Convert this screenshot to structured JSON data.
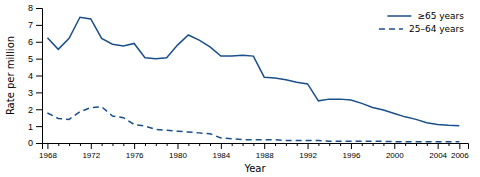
{
  "chart_data": {
    "type": "line",
    "xlabel": "Year",
    "ylabel": "Rate per million",
    "x": [
      1968,
      1969,
      1970,
      1971,
      1972,
      1973,
      1974,
      1975,
      1976,
      1977,
      1978,
      1979,
      1980,
      1981,
      1982,
      1983,
      1984,
      1985,
      1986,
      1987,
      1988,
      1989,
      1990,
      1991,
      1992,
      1993,
      1994,
      1995,
      1996,
      1997,
      1998,
      1999,
      2000,
      2001,
      2002,
      2003,
      2004,
      2005,
      2006
    ],
    "series": [
      {
        "name": "≥65 years",
        "color": "#1a4f8a",
        "line_style": "solid",
        "values": [
          6.24,
          5.55,
          6.2,
          7.45,
          7.35,
          6.2,
          5.85,
          5.75,
          5.9,
          5.05,
          5.0,
          5.05,
          5.8,
          6.4,
          6.1,
          5.7,
          5.15,
          5.15,
          5.2,
          5.15,
          3.9,
          3.85,
          3.75,
          3.6,
          3.5,
          2.5,
          2.6,
          2.6,
          2.55,
          2.35,
          2.1,
          1.95,
          1.75,
          1.55,
          1.4,
          1.2,
          1.1,
          1.05,
          1.02
        ]
      },
      {
        "name": "25–64 years",
        "color": "#1a4f8a",
        "line_style": "dashed",
        "values": [
          1.78,
          1.45,
          1.4,
          1.85,
          2.1,
          2.15,
          1.6,
          1.5,
          1.1,
          1.0,
          0.8,
          0.75,
          0.7,
          0.65,
          0.6,
          0.55,
          0.3,
          0.25,
          0.2,
          0.2,
          0.2,
          0.2,
          0.15,
          0.15,
          0.15,
          0.15,
          0.1,
          0.1,
          0.1,
          0.1,
          0.1,
          0.1,
          0.08,
          0.08,
          0.07,
          0.07,
          0.07,
          0.07,
          0.07
        ]
      }
    ],
    "xlim": [
      1967.5,
      2006.8
    ],
    "xticks": [
      1968,
      {
        "value": 1969,
        "label": null
      },
      {
        "value": 1970,
        "label": null
      },
      {
        "value": 1971,
        "label": null
      },
      1972,
      {
        "value": 1973,
        "label": null
      },
      {
        "value": 1974,
        "label": null
      },
      {
        "value": 1975,
        "label": null
      },
      1976,
      {
        "value": 1977,
        "label": null
      },
      {
        "value": 1978,
        "label": null
      },
      {
        "value": 1979,
        "label": null
      },
      1980,
      {
        "value": 1981,
        "label": null
      },
      {
        "value": 1982,
        "label": null
      },
      {
        "value": 1983,
        "label": null
      },
      1984,
      {
        "value": 1985,
        "label": null
      },
      {
        "value": 1986,
        "label": null
      },
      {
        "value": 1987,
        "label": null
      },
      1988,
      {
        "value": 1989,
        "label": null
      },
      {
        "value": 1990,
        "label": null
      },
      {
        "value": 1991,
        "label": null
      },
      1992,
      {
        "value": 1993,
        "label": null
      },
      {
        "value": 1994,
        "label": null
      },
      {
        "value": 1995,
        "label": null
      },
      1996,
      {
        "value": 1997,
        "label": null
      },
      {
        "value": 1998,
        "label": null
      },
      {
        "value": 1999,
        "label": null
      },
      2000,
      {
        "value": 2001,
        "label": null
      },
      {
        "value": 2002,
        "label": null
      },
      {
        "value": 2003,
        "label": null
      },
      2004,
      {
        "value": 2005,
        "label": null
      },
      2006
    ],
    "ylim": [
      0,
      8
    ],
    "yticks": [
      0,
      1,
      2,
      3,
      4,
      5,
      6,
      7,
      8
    ],
    "legend": "upper right"
  }
}
